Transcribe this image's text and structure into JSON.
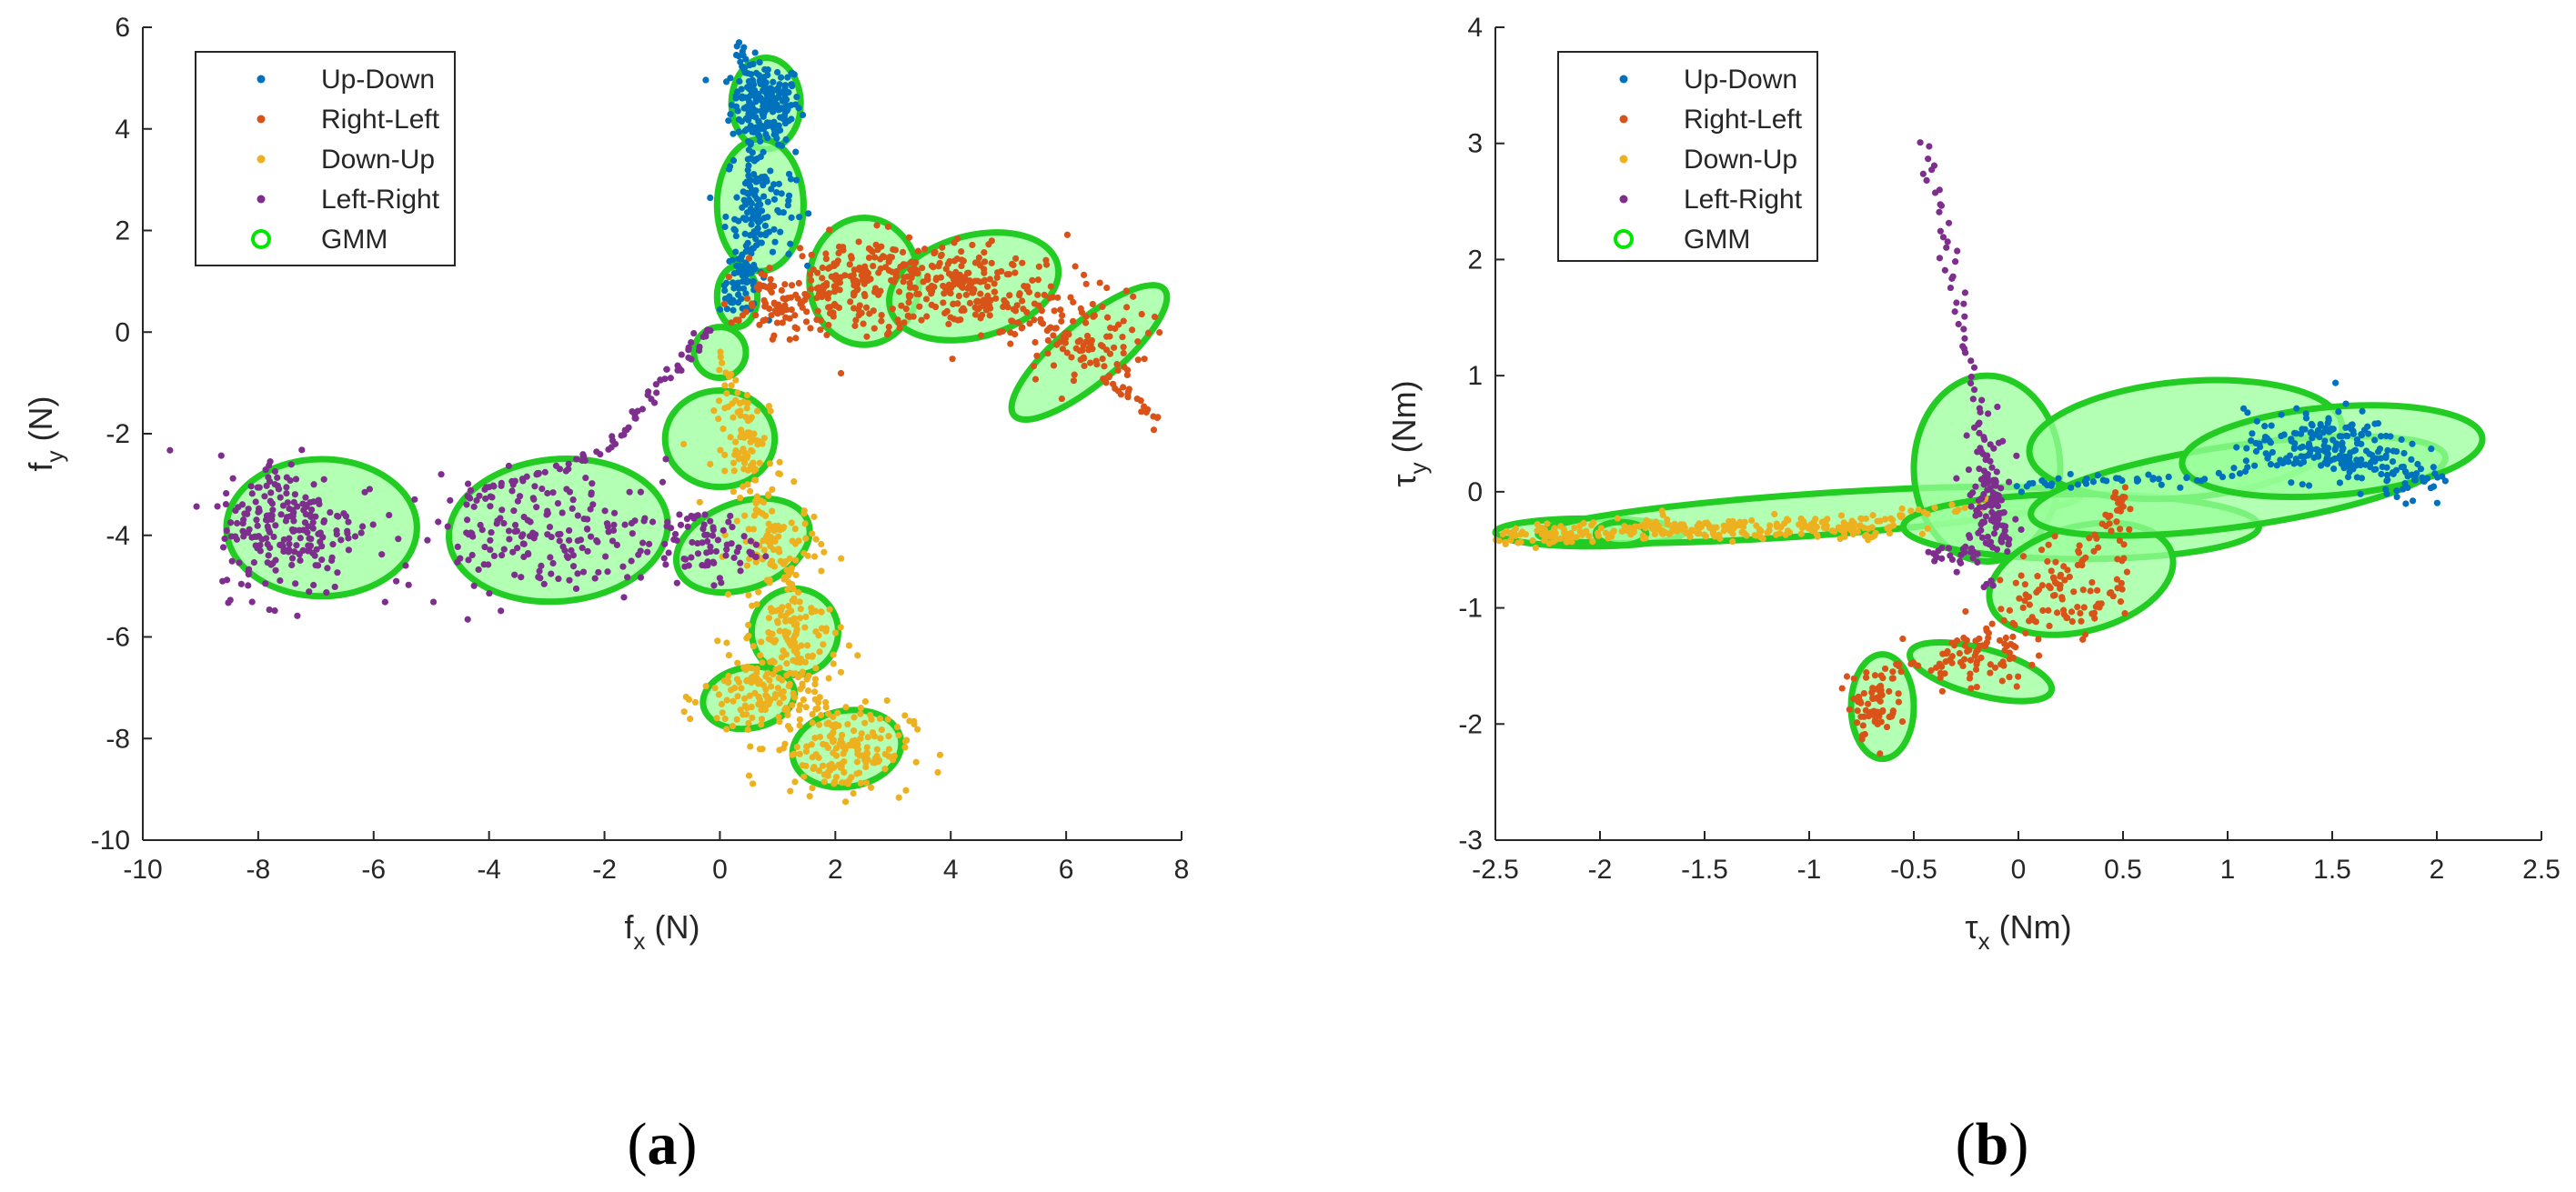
{
  "colors": {
    "Up-Down": "#0072BD",
    "Right-Left": "#D95319",
    "Down-Up": "#EDB120",
    "Left-Right": "#7E2F8E",
    "GMM_edge": "#22CC22",
    "GMM_fill": "#99FF99"
  },
  "chart_data": [
    {
      "type": "scatter",
      "panel_label": "a",
      "xlabel": "f",
      "xlabel_sub": "x",
      "xlabel_unit": " (N)",
      "ylabel": "f",
      "ylabel_sub": "y",
      "ylabel_unit": " (N)",
      "xlim": [
        -10,
        8
      ],
      "ylim": [
        -10,
        6
      ],
      "xticks": [
        -10,
        -8,
        -6,
        -4,
        -2,
        0,
        2,
        4,
        6,
        8
      ],
      "yticks": [
        -10,
        -8,
        -6,
        -4,
        -2,
        0,
        2,
        4,
        6
      ],
      "legend_position": "top-left",
      "legend": [
        "Up-Down",
        "Right-Left",
        "Down-Up",
        "Left-Right",
        "GMM"
      ],
      "series": [
        {
          "name": "Up-Down",
          "clusters": [
            {
              "x": 0.8,
              "y": 4.5,
              "sx": 0.3,
              "sy": 0.4,
              "n": 180
            },
            {
              "x": 0.7,
              "y": 2.5,
              "sx": 0.3,
              "sy": 0.6,
              "n": 110
            },
            {
              "x": 0.4,
              "y": 1.0,
              "sx": 0.2,
              "sy": 0.3,
              "n": 50
            }
          ],
          "path": [
            [
              0.3,
              5.7
            ],
            [
              0.5,
              5.0
            ],
            [
              0.6,
              4.0
            ],
            [
              0.5,
              3.0
            ],
            [
              0.6,
              2.0
            ],
            [
              0.4,
              1.0
            ],
            [
              0.2,
              0.5
            ]
          ]
        },
        {
          "name": "Right-Left",
          "clusters": [
            {
              "x": 2.5,
              "y": 1.0,
              "sx": 0.7,
              "sy": 0.45,
              "n": 140
            },
            {
              "x": 4.2,
              "y": 0.9,
              "sx": 0.9,
              "sy": 0.5,
              "n": 190
            },
            {
              "x": 6.2,
              "y": -0.2,
              "sx": 0.6,
              "sy": 0.5,
              "n": 100
            },
            {
              "x": 1.2,
              "y": 0.5,
              "sx": 0.5,
              "sy": 0.4,
              "n": 60
            }
          ],
          "path": [
            [
              0.2,
              0.2
            ],
            [
              1.0,
              0.5
            ],
            [
              2.0,
              1.0
            ],
            [
              3.0,
              1.2
            ],
            [
              4.0,
              1.0
            ],
            [
              5.0,
              0.5
            ],
            [
              6.0,
              0.0
            ],
            [
              7.0,
              -1.2
            ],
            [
              7.6,
              -1.8
            ]
          ]
        },
        {
          "name": "Down-Up",
          "clusters": [
            {
              "x": 0.5,
              "y": -2.3,
              "sx": 0.3,
              "sy": 0.6,
              "n": 70
            },
            {
              "x": 1.0,
              "y": -4.3,
              "sx": 0.4,
              "sy": 0.5,
              "n": 80
            },
            {
              "x": 1.3,
              "y": -6.0,
              "sx": 0.4,
              "sy": 0.5,
              "n": 80
            },
            {
              "x": 0.7,
              "y": -7.2,
              "sx": 0.5,
              "sy": 0.45,
              "n": 130
            },
            {
              "x": 2.1,
              "y": -8.2,
              "sx": 0.6,
              "sy": 0.45,
              "n": 150
            }
          ],
          "path": [
            [
              0.0,
              -0.5
            ],
            [
              0.4,
              -1.5
            ],
            [
              0.5,
              -3.0
            ],
            [
              0.9,
              -4.0
            ],
            [
              1.2,
              -5.0
            ],
            [
              1.3,
              -6.0
            ],
            [
              1.5,
              -7.0
            ],
            [
              2.0,
              -8.0
            ],
            [
              2.8,
              -8.6
            ]
          ]
        },
        {
          "name": "Left-Right",
          "clusters": [
            {
              "x": -7.5,
              "y": -3.8,
              "sx": 0.6,
              "sy": 0.7,
              "n": 220
            },
            {
              "x": -3.0,
              "y": -4.0,
              "sx": 1.3,
              "sy": 0.55,
              "n": 190
            },
            {
              "x": -0.2,
              "y": -4.2,
              "sx": 0.4,
              "sy": 0.35,
              "n": 60
            }
          ],
          "path": [
            [
              -0.2,
              0.1
            ],
            [
              -0.6,
              -0.6
            ],
            [
              -1.3,
              -1.3
            ],
            [
              -1.8,
              -2.2
            ],
            [
              -2.8,
              -2.7
            ],
            [
              -3.8,
              -3.0
            ],
            [
              -4.5,
              -3.3
            ]
          ]
        }
      ],
      "gmm": [
        {
          "cx": 0.8,
          "cy": 4.5,
          "rx": 0.6,
          "ry": 0.9,
          "angle": 0
        },
        {
          "cx": 0.7,
          "cy": 2.5,
          "rx": 0.75,
          "ry": 1.3,
          "angle": 0
        },
        {
          "cx": 0.3,
          "cy": 0.7,
          "rx": 0.35,
          "ry": 0.6,
          "angle": 0
        },
        {
          "cx": 2.5,
          "cy": 1.0,
          "rx": 0.95,
          "ry": 1.25,
          "angle": 0
        },
        {
          "cx": 4.4,
          "cy": 0.9,
          "rx": 1.5,
          "ry": 1.0,
          "angle": -15
        },
        {
          "cx": 6.4,
          "cy": -0.4,
          "rx": 1.7,
          "ry": 0.6,
          "angle": -40
        },
        {
          "cx": 0.0,
          "cy": -0.4,
          "rx": 0.45,
          "ry": 0.5,
          "angle": 0
        },
        {
          "cx": 0.0,
          "cy": -2.1,
          "rx": 0.95,
          "ry": 0.95,
          "angle": 0
        },
        {
          "cx": 0.4,
          "cy": -4.2,
          "rx": 1.2,
          "ry": 0.85,
          "angle": -20
        },
        {
          "cx": 1.3,
          "cy": -5.9,
          "rx": 0.75,
          "ry": 0.85,
          "angle": 0
        },
        {
          "cx": 0.5,
          "cy": -7.2,
          "rx": 0.8,
          "ry": 0.6,
          "angle": -10
        },
        {
          "cx": 2.2,
          "cy": -8.2,
          "rx": 0.95,
          "ry": 0.75,
          "angle": -10
        },
        {
          "cx": -6.9,
          "cy": -3.85,
          "rx": 1.65,
          "ry": 1.35,
          "angle": 0
        },
        {
          "cx": -2.8,
          "cy": -3.9,
          "rx": 1.9,
          "ry": 1.4,
          "angle": -5
        }
      ]
    },
    {
      "type": "scatter",
      "panel_label": "b",
      "xlabel": "τ",
      "xlabel_sub": "x",
      "xlabel_unit": " (Nm)",
      "ylabel": "τ",
      "ylabel_sub": "y",
      "ylabel_unit": " (Nm)",
      "xlim": [
        -2.5,
        2.5
      ],
      "ylim": [
        -3,
        4
      ],
      "xticks": [
        -2.5,
        -2,
        -1.5,
        -1,
        -0.5,
        0,
        0.5,
        1,
        1.5,
        2,
        2.5
      ],
      "yticks": [
        -3,
        -2,
        -1,
        0,
        1,
        2,
        3,
        4
      ],
      "legend_position": "top-left",
      "legend": [
        "Up-Down",
        "Right-Left",
        "Down-Up",
        "Left-Right",
        "GMM"
      ],
      "series": [
        {
          "name": "Up-Down",
          "clusters": [
            {
              "x": 1.45,
              "y": 0.4,
              "sx": 0.18,
              "sy": 0.15,
              "n": 170
            },
            {
              "x": 1.8,
              "y": 0.15,
              "sx": 0.12,
              "sy": 0.15,
              "n": 40
            }
          ],
          "path": [
            [
              0.0,
              0.05
            ],
            [
              0.3,
              0.1
            ],
            [
              0.6,
              0.1
            ],
            [
              1.0,
              0.15
            ],
            [
              1.4,
              0.35
            ],
            [
              1.8,
              0.2
            ],
            [
              2.05,
              0.1
            ]
          ]
        },
        {
          "name": "Right-Left",
          "clusters": [
            {
              "x": -0.7,
              "y": -1.8,
              "sx": 0.06,
              "sy": 0.15,
              "n": 60
            },
            {
              "x": -0.2,
              "y": -1.4,
              "sx": 0.12,
              "sy": 0.15,
              "n": 60
            },
            {
              "x": 0.2,
              "y": -0.9,
              "sx": 0.12,
              "sy": 0.25,
              "n": 60
            }
          ],
          "path": [
            [
              -0.75,
              -2.1
            ],
            [
              -0.6,
              -1.5
            ],
            [
              -0.3,
              -1.5
            ],
            [
              0.0,
              -1.0
            ],
            [
              0.3,
              -0.6
            ],
            [
              0.45,
              -0.2
            ],
            [
              0.5,
              0.0
            ],
            [
              0.5,
              -0.8
            ],
            [
              0.3,
              -1.1
            ]
          ]
        },
        {
          "name": "Down-Up",
          "clusters": [
            {
              "x": -2.2,
              "y": -0.38,
              "sx": 0.15,
              "sy": 0.04,
              "n": 60
            },
            {
              "x": -1.6,
              "y": -0.33,
              "sx": 0.25,
              "sy": 0.05,
              "n": 90
            },
            {
              "x": -0.9,
              "y": -0.3,
              "sx": 0.25,
              "sy": 0.05,
              "n": 80
            }
          ],
          "path": [
            [
              -2.4,
              -0.38
            ],
            [
              -2.0,
              -0.36
            ],
            [
              -1.5,
              -0.32
            ],
            [
              -1.0,
              -0.28
            ],
            [
              -0.5,
              -0.2
            ],
            [
              -0.1,
              -0.1
            ]
          ]
        },
        {
          "name": "Left-Right",
          "clusters": [
            {
              "x": -0.15,
              "y": -0.1,
              "sx": 0.06,
              "sy": 0.3,
              "n": 90
            },
            {
              "x": -0.3,
              "y": -0.55,
              "sx": 0.1,
              "sy": 0.05,
              "n": 20
            }
          ],
          "path": [
            [
              -0.45,
              3.0
            ],
            [
              -0.35,
              2.2
            ],
            [
              -0.28,
              1.5
            ],
            [
              -0.2,
              0.8
            ],
            [
              -0.15,
              0.2
            ],
            [
              -0.1,
              -0.3
            ],
            [
              -0.05,
              -0.5
            ]
          ]
        }
      ],
      "gmm": [
        {
          "cx": -2.05,
          "cy": -0.35,
          "rx": 0.45,
          "ry": 0.12,
          "angle": 0
        },
        {
          "cx": -1.0,
          "cy": -0.2,
          "rx": 1.3,
          "ry": 0.18,
          "angle": -4
        },
        {
          "cx": -1.9,
          "cy": -0.36,
          "rx": 0.12,
          "ry": 0.1,
          "angle": 0
        },
        {
          "cx": -0.15,
          "cy": 0.2,
          "rx": 0.35,
          "ry": 0.8,
          "angle": 0
        },
        {
          "cx": 0.3,
          "cy": -0.3,
          "rx": 0.85,
          "ry": 0.28,
          "angle": 0
        },
        {
          "cx": 0.3,
          "cy": -0.75,
          "rx": 0.45,
          "ry": 0.45,
          "angle": -15
        },
        {
          "cx": -0.18,
          "cy": -1.55,
          "rx": 0.35,
          "ry": 0.2,
          "angle": 15
        },
        {
          "cx": -0.65,
          "cy": -1.85,
          "rx": 0.15,
          "ry": 0.45,
          "angle": 0
        },
        {
          "cx": 0.8,
          "cy": 0.45,
          "rx": 0.75,
          "ry": 0.5,
          "angle": -5
        },
        {
          "cx": 1.05,
          "cy": 0.05,
          "rx": 1.0,
          "ry": 0.35,
          "angle": -8
        },
        {
          "cx": 1.5,
          "cy": 0.35,
          "rx": 0.72,
          "ry": 0.38,
          "angle": -5
        }
      ]
    }
  ]
}
